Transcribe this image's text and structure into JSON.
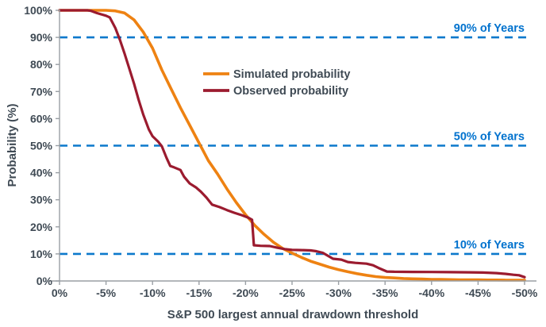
{
  "chart_data": {
    "type": "line",
    "title": "",
    "xlabel": "S&P 500 largest annual drawdown threshold",
    "ylabel": "Probability (%)",
    "xlim": [
      0,
      -50
    ],
    "ylim": [
      0,
      100
    ],
    "grid": false,
    "legend_position": "inside-upper-center",
    "x_ticks": [
      {
        "value": 0,
        "label": "0%"
      },
      {
        "value": -5,
        "label": "-5%"
      },
      {
        "value": -10,
        "label": "-10%"
      },
      {
        "value": -15,
        "label": "-15%"
      },
      {
        "value": -20,
        "label": "-20%"
      },
      {
        "value": -25,
        "label": "-25%"
      },
      {
        "value": -30,
        "label": "-30%"
      },
      {
        "value": -35,
        "label": "-35%"
      },
      {
        "value": -40,
        "label": "-40%"
      },
      {
        "value": -45,
        "label": "-45%"
      },
      {
        "value": -50,
        "label": "-50%"
      }
    ],
    "y_ticks": [
      {
        "value": 0,
        "label": "0%"
      },
      {
        "value": 10,
        "label": "10%"
      },
      {
        "value": 20,
        "label": "20%"
      },
      {
        "value": 30,
        "label": "30%"
      },
      {
        "value": 40,
        "label": "40%"
      },
      {
        "value": 50,
        "label": "50%"
      },
      {
        "value": 60,
        "label": "60%"
      },
      {
        "value": 70,
        "label": "70%"
      },
      {
        "value": 80,
        "label": "80%"
      },
      {
        "value": 90,
        "label": "90%"
      },
      {
        "value": 100,
        "label": "100%"
      }
    ],
    "reference_lines": [
      {
        "value": 90,
        "label": "90% of Years",
        "color": "#0C79CC",
        "style": "dashed"
      },
      {
        "value": 50,
        "label": "50% of Years",
        "color": "#0C79CC",
        "style": "dashed"
      },
      {
        "value": 10,
        "label": "10% of Years",
        "color": "#0C79CC",
        "style": "dashed"
      }
    ],
    "series": [
      {
        "name": "Simulated probability",
        "color": "#EE8212",
        "points": [
          [
            0,
            100
          ],
          [
            -1,
            100
          ],
          [
            -2,
            100
          ],
          [
            -3,
            100
          ],
          [
            -4,
            100
          ],
          [
            -5,
            100
          ],
          [
            -6,
            99.8
          ],
          [
            -7,
            99
          ],
          [
            -8,
            96.5
          ],
          [
            -9,
            92
          ],
          [
            -10,
            86
          ],
          [
            -11,
            78
          ],
          [
            -12,
            71
          ],
          [
            -13,
            64
          ],
          [
            -14,
            57.5
          ],
          [
            -15,
            51
          ],
          [
            -16,
            44.5
          ],
          [
            -17,
            39.5
          ],
          [
            -18,
            34
          ],
          [
            -19,
            29
          ],
          [
            -20,
            24.5
          ],
          [
            -21,
            20.5
          ],
          [
            -22,
            17.2
          ],
          [
            -23,
            14.3
          ],
          [
            -24,
            12
          ],
          [
            -25,
            10.3
          ],
          [
            -26,
            8.7
          ],
          [
            -27,
            7.3
          ],
          [
            -28,
            6.2
          ],
          [
            -29,
            5.1
          ],
          [
            -30,
            4.2
          ],
          [
            -31,
            3.4
          ],
          [
            -32,
            2.7
          ],
          [
            -33,
            2.1
          ],
          [
            -34,
            1.6
          ],
          [
            -35,
            1.3
          ],
          [
            -36,
            1.1
          ],
          [
            -37,
            0.9
          ],
          [
            -38,
            0.8
          ],
          [
            -39,
            0.7
          ],
          [
            -40,
            0.6
          ],
          [
            -41,
            0.55
          ],
          [
            -42,
            0.5
          ],
          [
            -43,
            0.45
          ],
          [
            -44,
            0.4
          ],
          [
            -45,
            0.4
          ],
          [
            -46,
            0.35
          ],
          [
            -47,
            0.35
          ],
          [
            -48,
            0.3
          ],
          [
            -49,
            0.3
          ],
          [
            -50,
            0.3
          ]
        ]
      },
      {
        "name": "Observed probability",
        "color": "#9B1B2F",
        "points": [
          [
            0,
            100
          ],
          [
            -1,
            100
          ],
          [
            -2,
            100
          ],
          [
            -3,
            100
          ],
          [
            -3.4,
            99.8
          ],
          [
            -4,
            99
          ],
          [
            -5,
            98
          ],
          [
            -5.4,
            97.4
          ],
          [
            -6,
            93.5
          ],
          [
            -6.5,
            89
          ],
          [
            -7,
            84
          ],
          [
            -7.5,
            78.5
          ],
          [
            -8,
            73
          ],
          [
            -8.5,
            67
          ],
          [
            -9,
            61.5
          ],
          [
            -9.6,
            56
          ],
          [
            -10,
            53.5
          ],
          [
            -10.6,
            51.5
          ],
          [
            -11,
            49.8
          ],
          [
            -11.5,
            45.5
          ],
          [
            -11.9,
            42.5
          ],
          [
            -12.3,
            42
          ],
          [
            -13,
            41
          ],
          [
            -13.4,
            38.5
          ],
          [
            -14,
            36
          ],
          [
            -14.7,
            34.5
          ],
          [
            -15.2,
            33
          ],
          [
            -15.8,
            30.8
          ],
          [
            -16.4,
            28.2
          ],
          [
            -17.2,
            27.3
          ],
          [
            -18,
            26.2
          ],
          [
            -18.8,
            25.2
          ],
          [
            -19.6,
            24.3
          ],
          [
            -20.3,
            23.4
          ],
          [
            -20.7,
            22.6
          ],
          [
            -20.9,
            13.2
          ],
          [
            -21.6,
            13
          ],
          [
            -22.6,
            12.9
          ],
          [
            -23.4,
            12.3
          ],
          [
            -24.2,
            11.8
          ],
          [
            -25,
            11.5
          ],
          [
            -26,
            11.4
          ],
          [
            -27,
            11.3
          ],
          [
            -27.6,
            11
          ],
          [
            -28.3,
            10.4
          ],
          [
            -28.8,
            9.4
          ],
          [
            -29.4,
            8.2
          ],
          [
            -30.3,
            7.9
          ],
          [
            -31,
            7
          ],
          [
            -31.8,
            6.7
          ],
          [
            -33,
            6.4
          ],
          [
            -33.7,
            5.8
          ],
          [
            -34.3,
            4.8
          ],
          [
            -35.2,
            3.5
          ],
          [
            -36,
            3.4
          ],
          [
            -38,
            3.35
          ],
          [
            -40,
            3.3
          ],
          [
            -42,
            3.25
          ],
          [
            -44,
            3.2
          ],
          [
            -45.5,
            3.1
          ],
          [
            -47,
            2.9
          ],
          [
            -48,
            2.6
          ],
          [
            -48.8,
            2.3
          ],
          [
            -49.4,
            2.1
          ],
          [
            -50,
            1.4
          ]
        ]
      }
    ]
  },
  "styles": {
    "background": "#FFFFFF",
    "axis_color": "#9A9FA4",
    "text_color": "#3F4A54",
    "ref_label_color": "#0072CE"
  }
}
